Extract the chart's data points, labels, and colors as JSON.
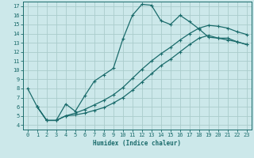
{
  "xlabel": "Humidex (Indice chaleur)",
  "bg_color": "#cce8ea",
  "grid_color": "#aacccc",
  "line_color": "#1a6b6b",
  "xlim": [
    -0.5,
    23.5
  ],
  "ylim": [
    3.5,
    17.5
  ],
  "xticks": [
    0,
    1,
    2,
    3,
    4,
    5,
    6,
    7,
    8,
    9,
    10,
    11,
    12,
    13,
    14,
    15,
    16,
    17,
    18,
    19,
    20,
    21,
    22,
    23
  ],
  "yticks": [
    4,
    5,
    6,
    7,
    8,
    9,
    10,
    11,
    12,
    13,
    14,
    15,
    16,
    17
  ],
  "line1_x": [
    0,
    1,
    2,
    3,
    4,
    5,
    6,
    7,
    8,
    9,
    10,
    11,
    12,
    13,
    14,
    15,
    16,
    17,
    18,
    19,
    20,
    21,
    22,
    23
  ],
  "line1_y": [
    8.0,
    6.0,
    4.5,
    4.5,
    6.3,
    5.5,
    7.2,
    8.8,
    9.5,
    10.2,
    13.4,
    16.0,
    17.2,
    17.1,
    15.4,
    15.0,
    16.0,
    15.3,
    14.5,
    13.6,
    13.5,
    13.5,
    13.1,
    12.8
  ],
  "line2_x": [
    1,
    2,
    3,
    4,
    5,
    6,
    7,
    8,
    9,
    10,
    11,
    12,
    13,
    14,
    15,
    16,
    17,
    18,
    19,
    20,
    21,
    22,
    23
  ],
  "line2_y": [
    6.0,
    4.5,
    4.5,
    5.0,
    5.1,
    5.3,
    5.6,
    5.9,
    6.4,
    7.0,
    7.8,
    8.7,
    9.6,
    10.5,
    11.2,
    12.0,
    12.8,
    13.5,
    13.8,
    13.5,
    13.3,
    13.1,
    12.8
  ],
  "line3_x": [
    1,
    2,
    3,
    4,
    5,
    6,
    7,
    8,
    9,
    10,
    11,
    12,
    13,
    14,
    15,
    16,
    17,
    18,
    19,
    20,
    21,
    22,
    23
  ],
  "line3_y": [
    6.0,
    4.5,
    4.5,
    5.0,
    5.3,
    5.7,
    6.2,
    6.7,
    7.3,
    8.1,
    9.1,
    10.1,
    11.0,
    11.8,
    12.5,
    13.3,
    14.0,
    14.6,
    14.9,
    14.8,
    14.6,
    14.2,
    13.9
  ]
}
